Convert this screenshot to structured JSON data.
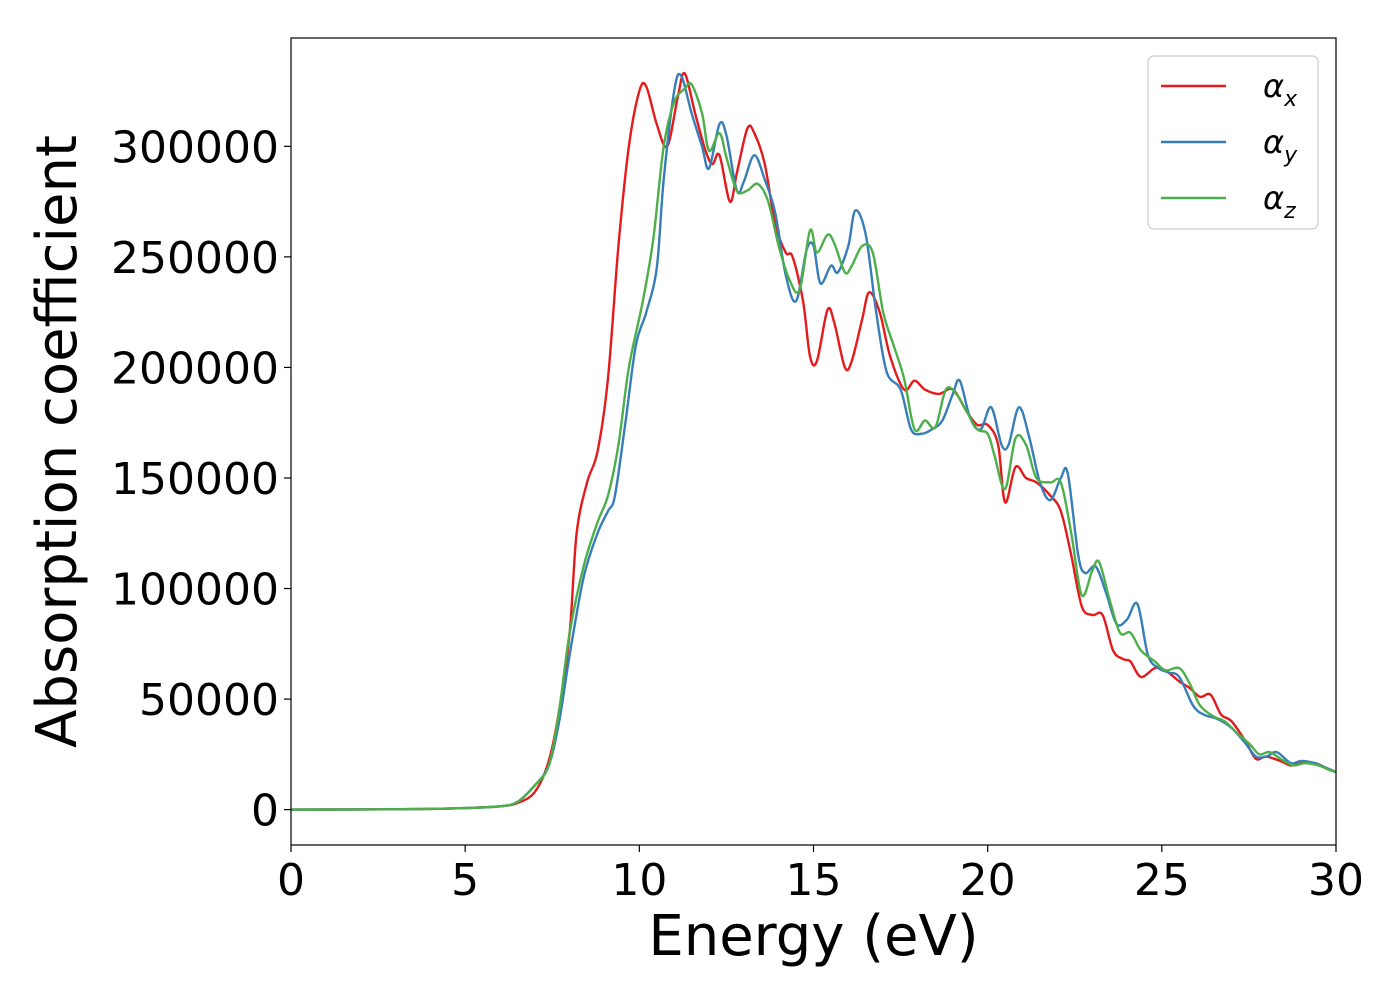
{
  "chart_data": {
    "type": "line",
    "title": "",
    "xlabel": "Energy (eV)",
    "ylabel": "Absorption coefficient",
    "xlim": [
      0,
      30
    ],
    "ylim": [
      -16000,
      349000
    ],
    "xticks": [
      0,
      5,
      10,
      15,
      20,
      25,
      30
    ],
    "xtick_labels": [
      "0",
      "5",
      "10",
      "15",
      "20",
      "25",
      "30"
    ],
    "yticks": [
      0,
      50000,
      100000,
      150000,
      200000,
      250000,
      300000
    ],
    "ytick_labels": [
      "0",
      "50000",
      "100000",
      "150000",
      "200000",
      "250000",
      "300000"
    ],
    "grid": false,
    "legend_position": "top-right",
    "series": [
      {
        "name": "α",
        "subscript": "x",
        "color": "#e41a1c",
        "points": [
          [
            0,
            0
          ],
          [
            2,
            100
          ],
          [
            4,
            300
          ],
          [
            5,
            700
          ],
          [
            6,
            1500
          ],
          [
            6.5,
            3000
          ],
          [
            7,
            8000
          ],
          [
            7.4,
            22000
          ],
          [
            7.7,
            45000
          ],
          [
            8,
            80000
          ],
          [
            8.2,
            125000
          ],
          [
            8.5,
            148000
          ],
          [
            8.8,
            162000
          ],
          [
            9.1,
            195000
          ],
          [
            9.4,
            255000
          ],
          [
            9.7,
            300000
          ],
          [
            10,
            325000
          ],
          [
            10.2,
            327000
          ],
          [
            10.5,
            310000
          ],
          [
            10.8,
            300000
          ],
          [
            11.1,
            322000
          ],
          [
            11.3,
            333000
          ],
          [
            11.6,
            315000
          ],
          [
            11.9,
            298000
          ],
          [
            12.1,
            292000
          ],
          [
            12.3,
            296000
          ],
          [
            12.6,
            275000
          ],
          [
            12.8,
            288000
          ],
          [
            13.1,
            308000
          ],
          [
            13.3,
            306000
          ],
          [
            13.6,
            292000
          ],
          [
            13.9,
            265000
          ],
          [
            14.2,
            252000
          ],
          [
            14.4,
            250000
          ],
          [
            14.7,
            230000
          ],
          [
            14.9,
            205000
          ],
          [
            15.1,
            203000
          ],
          [
            15.4,
            226000
          ],
          [
            15.6,
            220000
          ],
          [
            15.9,
            200000
          ],
          [
            16.1,
            203000
          ],
          [
            16.4,
            222000
          ],
          [
            16.6,
            234000
          ],
          [
            16.9,
            225000
          ],
          [
            17.2,
            205000
          ],
          [
            17.6,
            190000
          ],
          [
            17.9,
            194000
          ],
          [
            18.2,
            190000
          ],
          [
            18.6,
            188000
          ],
          [
            19.0,
            190000
          ],
          [
            19.4,
            180000
          ],
          [
            19.7,
            174000
          ],
          [
            20.0,
            174000
          ],
          [
            20.3,
            165000
          ],
          [
            20.5,
            139000
          ],
          [
            20.8,
            155000
          ],
          [
            21.1,
            150000
          ],
          [
            21.4,
            148000
          ],
          [
            21.8,
            142000
          ],
          [
            22.1,
            135000
          ],
          [
            22.4,
            115000
          ],
          [
            22.7,
            92000
          ],
          [
            23.0,
            88000
          ],
          [
            23.3,
            88000
          ],
          [
            23.6,
            72000
          ],
          [
            23.9,
            68000
          ],
          [
            24.1,
            67000
          ],
          [
            24.4,
            60000
          ],
          [
            24.8,
            64000
          ],
          [
            25.1,
            63000
          ],
          [
            25.5,
            58000
          ],
          [
            25.8,
            55000
          ],
          [
            26.1,
            51000
          ],
          [
            26.4,
            52000
          ],
          [
            26.7,
            43000
          ],
          [
            27.0,
            40000
          ],
          [
            27.4,
            31000
          ],
          [
            27.7,
            23000
          ],
          [
            28.0,
            24000
          ],
          [
            28.4,
            22000
          ],
          [
            28.7,
            20000
          ],
          [
            29.0,
            21000
          ],
          [
            29.4,
            21000
          ],
          [
            29.7,
            19000
          ],
          [
            30,
            17000
          ]
        ]
      },
      {
        "name": "α",
        "subscript": "y",
        "color": "#377eb8",
        "points": [
          [
            0,
            0
          ],
          [
            2,
            100
          ],
          [
            4,
            300
          ],
          [
            5,
            700
          ],
          [
            6,
            1500
          ],
          [
            6.5,
            3500
          ],
          [
            7,
            11000
          ],
          [
            7.4,
            20000
          ],
          [
            7.7,
            40000
          ],
          [
            8,
            70000
          ],
          [
            8.4,
            105000
          ],
          [
            8.8,
            125000
          ],
          [
            9.1,
            135000
          ],
          [
            9.3,
            142000
          ],
          [
            9.6,
            175000
          ],
          [
            9.9,
            210000
          ],
          [
            10.2,
            225000
          ],
          [
            10.5,
            245000
          ],
          [
            10.7,
            285000
          ],
          [
            11.0,
            325000
          ],
          [
            11.2,
            332000
          ],
          [
            11.5,
            315000
          ],
          [
            11.8,
            300000
          ],
          [
            12.0,
            290000
          ],
          [
            12.3,
            310000
          ],
          [
            12.5,
            305000
          ],
          [
            12.8,
            280000
          ],
          [
            13.0,
            284000
          ],
          [
            13.3,
            296000
          ],
          [
            13.6,
            285000
          ],
          [
            13.9,
            270000
          ],
          [
            14.2,
            242000
          ],
          [
            14.5,
            230000
          ],
          [
            14.8,
            253000
          ],
          [
            15.0,
            255000
          ],
          [
            15.2,
            238000
          ],
          [
            15.5,
            246000
          ],
          [
            15.7,
            243000
          ],
          [
            16.0,
            255000
          ],
          [
            16.2,
            271000
          ],
          [
            16.5,
            260000
          ],
          [
            16.8,
            225000
          ],
          [
            17.1,
            198000
          ],
          [
            17.5,
            190000
          ],
          [
            17.8,
            172000
          ],
          [
            18.1,
            170000
          ],
          [
            18.4,
            172000
          ],
          [
            18.7,
            176000
          ],
          [
            19.0,
            188000
          ],
          [
            19.2,
            194000
          ],
          [
            19.5,
            177000
          ],
          [
            19.8,
            172000
          ],
          [
            20.1,
            182000
          ],
          [
            20.4,
            165000
          ],
          [
            20.6,
            165000
          ],
          [
            20.9,
            182000
          ],
          [
            21.2,
            168000
          ],
          [
            21.5,
            148000
          ],
          [
            21.8,
            140000
          ],
          [
            22.1,
            150000
          ],
          [
            22.3,
            152000
          ],
          [
            22.6,
            115000
          ],
          [
            22.8,
            107000
          ],
          [
            23.1,
            110000
          ],
          [
            23.4,
            98000
          ],
          [
            23.7,
            84000
          ],
          [
            24.0,
            86000
          ],
          [
            24.3,
            93000
          ],
          [
            24.6,
            70000
          ],
          [
            24.9,
            64000
          ],
          [
            25.2,
            62000
          ],
          [
            25.5,
            60000
          ],
          [
            25.9,
            47000
          ],
          [
            26.2,
            43000
          ],
          [
            26.6,
            41000
          ],
          [
            27.0,
            37000
          ],
          [
            27.4,
            30000
          ],
          [
            27.7,
            24000
          ],
          [
            28.0,
            24000
          ],
          [
            28.3,
            26000
          ],
          [
            28.7,
            21000
          ],
          [
            29.0,
            22000
          ],
          [
            29.4,
            21000
          ],
          [
            29.7,
            19000
          ],
          [
            30,
            17000
          ]
        ]
      },
      {
        "name": "α",
        "subscript": "z",
        "color": "#4daf4a",
        "points": [
          [
            0,
            0
          ],
          [
            2,
            100
          ],
          [
            4,
            300
          ],
          [
            5,
            700
          ],
          [
            6,
            1500
          ],
          [
            6.5,
            3500
          ],
          [
            7,
            11000
          ],
          [
            7.4,
            20000
          ],
          [
            7.7,
            45000
          ],
          [
            8,
            80000
          ],
          [
            8.4,
            110000
          ],
          [
            8.8,
            130000
          ],
          [
            9.1,
            142000
          ],
          [
            9.4,
            165000
          ],
          [
            9.7,
            200000
          ],
          [
            10.1,
            230000
          ],
          [
            10.4,
            258000
          ],
          [
            10.7,
            300000
          ],
          [
            11.0,
            320000
          ],
          [
            11.3,
            326000
          ],
          [
            11.5,
            328000
          ],
          [
            11.8,
            315000
          ],
          [
            12.0,
            298000
          ],
          [
            12.3,
            306000
          ],
          [
            12.5,
            295000
          ],
          [
            12.8,
            280000
          ],
          [
            13.1,
            280000
          ],
          [
            13.4,
            283000
          ],
          [
            13.7,
            275000
          ],
          [
            14.0,
            255000
          ],
          [
            14.3,
            240000
          ],
          [
            14.6,
            235000
          ],
          [
            14.9,
            262000
          ],
          [
            15.1,
            252000
          ],
          [
            15.4,
            260000
          ],
          [
            15.6,
            256000
          ],
          [
            15.9,
            243000
          ],
          [
            16.1,
            246000
          ],
          [
            16.4,
            255000
          ],
          [
            16.7,
            252000
          ],
          [
            17.0,
            225000
          ],
          [
            17.3,
            210000
          ],
          [
            17.6,
            195000
          ],
          [
            17.9,
            172000
          ],
          [
            18.2,
            176000
          ],
          [
            18.5,
            173000
          ],
          [
            18.8,
            190000
          ],
          [
            19.1,
            188000
          ],
          [
            19.4,
            180000
          ],
          [
            19.7,
            172000
          ],
          [
            20.0,
            170000
          ],
          [
            20.2,
            160000
          ],
          [
            20.5,
            145000
          ],
          [
            20.8,
            168000
          ],
          [
            21.1,
            165000
          ],
          [
            21.4,
            150000
          ],
          [
            21.8,
            148000
          ],
          [
            22.1,
            148000
          ],
          [
            22.4,
            125000
          ],
          [
            22.7,
            97000
          ],
          [
            23.0,
            108000
          ],
          [
            23.2,
            112000
          ],
          [
            23.5,
            95000
          ],
          [
            23.8,
            80000
          ],
          [
            24.1,
            80000
          ],
          [
            24.4,
            72000
          ],
          [
            24.8,
            67000
          ],
          [
            25.1,
            63000
          ],
          [
            25.5,
            64000
          ],
          [
            25.8,
            57000
          ],
          [
            26.1,
            47000
          ],
          [
            26.5,
            42000
          ],
          [
            26.8,
            40000
          ],
          [
            27.2,
            34000
          ],
          [
            27.5,
            30000
          ],
          [
            27.8,
            25000
          ],
          [
            28.1,
            26000
          ],
          [
            28.5,
            22000
          ],
          [
            28.8,
            20000
          ],
          [
            29.1,
            21000
          ],
          [
            29.5,
            20000
          ],
          [
            29.8,
            18000
          ],
          [
            30,
            17000
          ]
        ]
      }
    ]
  }
}
